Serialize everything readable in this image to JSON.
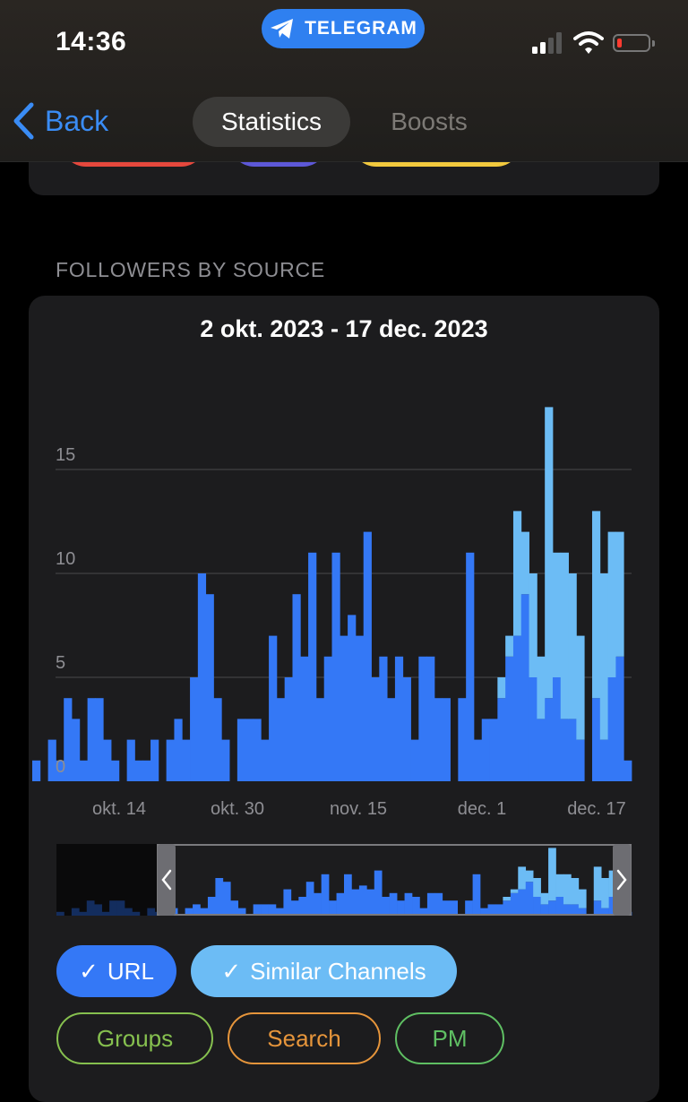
{
  "status_bar": {
    "time": "14:36",
    "app_pill": "TELEGRAM"
  },
  "nav": {
    "back_label": "Back",
    "tabs": [
      "Statistics",
      "Boosts"
    ],
    "active_tab": 0
  },
  "section": {
    "label": "FOLLOWERS BY SOURCE"
  },
  "chart": {
    "range_title": "2 okt. 2023 - 17 dec. 2023"
  },
  "colors": {
    "url": "#3478f6",
    "similar": "#6cbcf5",
    "groups": "#86c04f",
    "search": "#e6953b",
    "pm": "#5fbf63"
  },
  "filters": [
    {
      "label": "URL",
      "checked": true
    },
    {
      "label": "Similar Channels",
      "checked": true
    },
    {
      "label": "Groups",
      "checked": false
    },
    {
      "label": "Search",
      "checked": false
    },
    {
      "label": "PM",
      "checked": false
    }
  ],
  "chart_data": {
    "type": "bar",
    "stacked": true,
    "title": "2 okt. 2023 - 17 dec. 2023",
    "x_tick_labels": [
      "okt. 14",
      "okt. 30",
      "nov. 15",
      "dec. 1",
      "dec. 17"
    ],
    "y_tick_labels": [
      "0",
      "5",
      "10",
      "15"
    ],
    "ylim": [
      0,
      18
    ],
    "grid": true,
    "series": [
      {
        "name": "URL",
        "values": [
          1,
          0,
          2,
          1,
          4,
          3,
          1,
          4,
          4,
          2,
          1,
          0,
          2,
          1,
          1,
          2,
          0,
          2,
          3,
          2,
          5,
          10,
          9,
          4,
          2,
          0,
          3,
          3,
          3,
          2,
          7,
          4,
          5,
          9,
          6,
          11,
          4,
          6,
          11,
          7,
          8,
          7,
          12,
          5,
          6,
          4,
          6,
          5,
          2,
          6,
          6,
          4,
          4,
          0,
          4,
          11,
          2,
          3,
          3,
          4,
          6,
          7,
          9,
          5,
          3,
          4,
          5,
          3,
          3,
          2,
          0,
          4,
          2,
          5,
          6,
          1
        ],
        "color": "#3478f6"
      },
      {
        "name": "Similar Channels",
        "values": [
          0,
          0,
          0,
          0,
          0,
          0,
          0,
          0,
          0,
          0,
          0,
          0,
          0,
          0,
          0,
          0,
          0,
          0,
          0,
          0,
          0,
          0,
          0,
          0,
          0,
          0,
          0,
          0,
          0,
          0,
          0,
          0,
          0,
          0,
          0,
          0,
          0,
          0,
          0,
          0,
          0,
          0,
          0,
          0,
          0,
          0,
          0,
          0,
          0,
          0,
          0,
          0,
          0,
          0,
          0,
          0,
          0,
          0,
          0,
          1,
          1,
          6,
          3,
          5,
          3,
          14,
          6,
          8,
          7,
          5,
          0,
          9,
          8,
          7,
          6,
          0
        ],
        "color": "#6cbcf5"
      }
    ]
  }
}
